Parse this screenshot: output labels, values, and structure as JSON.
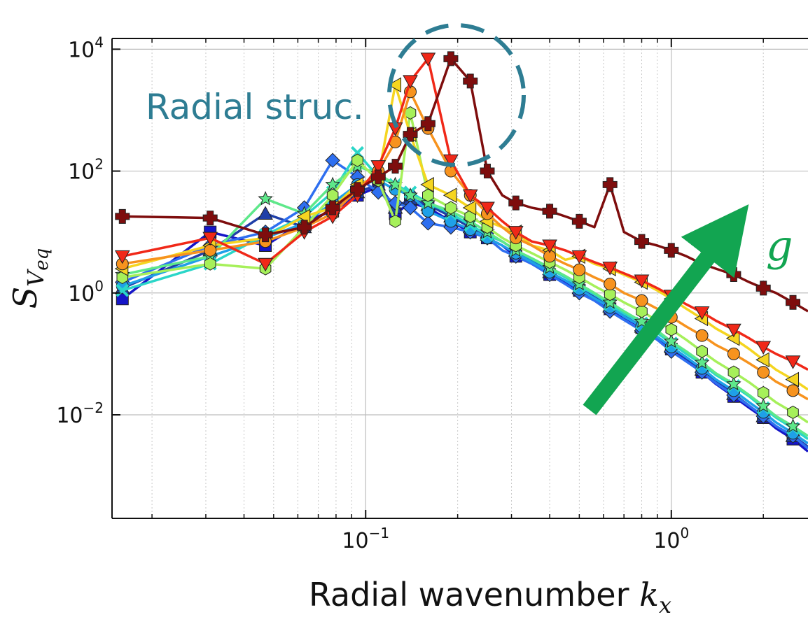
{
  "chart_data": {
    "type": "line",
    "title": "",
    "xlabel": "Radial wavenumber",
    "xlabel_symbol": "k",
    "xlabel_subscript": "x",
    "ylabel_symbol": "S",
    "ylabel_subscript_base": "V",
    "ylabel_subscript": "eq",
    "xscale": "log",
    "yscale": "log",
    "xlim": [
      0.0148,
      2.8
    ],
    "ylim": [
      0.0002,
      15000
    ],
    "grid": true,
    "x_ticks": [
      {
        "value": 0.1,
        "base": "10",
        "exp": "−1"
      },
      {
        "value": 1,
        "base": "10",
        "exp": "0"
      }
    ],
    "y_ticks": [
      {
        "value": 10000,
        "base": "10",
        "exp": "4"
      },
      {
        "value": 100,
        "base": "10",
        "exp": "2"
      },
      {
        "value": 1,
        "base": "10",
        "exp": "0"
      },
      {
        "value": 0.01,
        "base": "10",
        "exp": "−2"
      }
    ],
    "annotations": {
      "radial": "Radial struc.",
      "arrow": "g"
    },
    "series": [
      {
        "color": "#1515c8",
        "marker": "square",
        "x": [
          0.016,
          0.031,
          0.047,
          0.063,
          0.078,
          0.094,
          0.11,
          0.125,
          0.14,
          0.16,
          0.19,
          0.22,
          0.25,
          0.28,
          0.31,
          0.35,
          0.4,
          0.45,
          0.5,
          0.56,
          0.63,
          0.7,
          0.8,
          0.9,
          1.0,
          1.12,
          1.26,
          1.4,
          1.6,
          1.8,
          2.0,
          2.2,
          2.5,
          2.8
        ],
        "y": [
          0.8,
          10,
          6,
          15,
          22,
          40,
          55,
          20,
          30,
          25,
          15,
          10,
          8,
          6,
          4,
          3,
          2,
          1.5,
          1.1,
          0.8,
          0.55,
          0.4,
          0.27,
          0.18,
          0.12,
          0.08,
          0.05,
          0.032,
          0.02,
          0.013,
          0.009,
          0.006,
          0.004,
          0.0025
        ]
      },
      {
        "color": "#1f3fa8",
        "marker": "triangle-up",
        "x": [
          0.016,
          0.031,
          0.047,
          0.063,
          0.078,
          0.094,
          0.11,
          0.125,
          0.14,
          0.16,
          0.19,
          0.22,
          0.25,
          0.28,
          0.31,
          0.35,
          0.4,
          0.45,
          0.5,
          0.56,
          0.63,
          0.7,
          0.8,
          0.9,
          1.0,
          1.12,
          1.26,
          1.4,
          1.6,
          1.8,
          2.0,
          2.2,
          2.5,
          2.8
        ],
        "y": [
          1.2,
          5,
          20,
          12,
          25,
          45,
          60,
          25,
          35,
          28,
          18,
          12,
          9,
          7,
          5,
          3.5,
          2.2,
          1.6,
          1.2,
          0.85,
          0.6,
          0.42,
          0.28,
          0.19,
          0.13,
          0.085,
          0.055,
          0.035,
          0.022,
          0.014,
          0.0095,
          0.0065,
          0.0045,
          0.003
        ]
      },
      {
        "color": "#2e6ff0",
        "marker": "diamond",
        "x": [
          0.016,
          0.031,
          0.047,
          0.063,
          0.078,
          0.094,
          0.11,
          0.125,
          0.14,
          0.16,
          0.19,
          0.22,
          0.25,
          0.28,
          0.31,
          0.35,
          0.4,
          0.45,
          0.5,
          0.56,
          0.63,
          0.7,
          0.8,
          0.9,
          1.0,
          1.12,
          1.26,
          1.4,
          1.6,
          1.8,
          2.0,
          2.2,
          2.5,
          2.8
        ],
        "y": [
          1.5,
          6,
          10,
          25,
          150,
          80,
          45,
          30,
          25,
          14,
          12,
          10,
          8,
          5,
          4,
          3,
          2,
          1.4,
          1.0,
          0.75,
          0.5,
          0.36,
          0.24,
          0.17,
          0.11,
          0.075,
          0.05,
          0.033,
          0.021,
          0.014,
          0.0095,
          0.0065,
          0.0045,
          0.0028
        ]
      },
      {
        "color": "#1fa0e8",
        "marker": "circle",
        "x": [
          0.016,
          0.031,
          0.047,
          0.063,
          0.078,
          0.094,
          0.11,
          0.125,
          0.14,
          0.16,
          0.19,
          0.22,
          0.25,
          0.28,
          0.31,
          0.35,
          0.4,
          0.45,
          0.5,
          0.56,
          0.63,
          0.7,
          0.8,
          0.9,
          1.0,
          1.12,
          1.26,
          1.4,
          1.6,
          1.8,
          2.0,
          2.2,
          2.5,
          2.8
        ],
        "y": [
          1.3,
          4,
          8,
          14,
          30,
          60,
          70,
          50,
          40,
          22,
          15,
          11,
          8,
          6,
          4.5,
          3.2,
          2.2,
          1.6,
          1.15,
          0.82,
          0.58,
          0.41,
          0.28,
          0.19,
          0.13,
          0.088,
          0.058,
          0.038,
          0.025,
          0.016,
          0.011,
          0.0075,
          0.005,
          0.0034
        ]
      },
      {
        "color": "#2ad6c8",
        "marker": "x",
        "x": [
          0.016,
          0.031,
          0.047,
          0.063,
          0.078,
          0.094,
          0.11,
          0.125,
          0.14,
          0.16,
          0.19,
          0.22,
          0.25,
          0.28,
          0.31,
          0.35,
          0.4,
          0.45,
          0.5,
          0.56,
          0.63,
          0.7,
          0.8,
          0.9,
          1.0,
          1.12,
          1.26,
          1.4,
          1.6,
          1.8,
          2.0,
          2.2,
          2.5,
          2.8
        ],
        "y": [
          1.1,
          3,
          9,
          18,
          45,
          200,
          80,
          60,
          45,
          30,
          20,
          13,
          9,
          7,
          5,
          3.6,
          2.5,
          1.8,
          1.3,
          0.95,
          0.65,
          0.46,
          0.32,
          0.22,
          0.15,
          0.1,
          0.068,
          0.045,
          0.03,
          0.02,
          0.013,
          0.009,
          0.006,
          0.004
        ]
      },
      {
        "color": "#5ee88a",
        "marker": "star",
        "x": [
          0.016,
          0.031,
          0.047,
          0.063,
          0.078,
          0.094,
          0.11,
          0.125,
          0.14,
          0.16,
          0.19,
          0.22,
          0.25,
          0.28,
          0.31,
          0.35,
          0.4,
          0.45,
          0.5,
          0.56,
          0.63,
          0.7,
          0.8,
          0.9,
          1.0,
          1.12,
          1.26,
          1.4,
          1.6,
          1.8,
          2.0,
          2.2,
          2.5,
          2.8
        ],
        "y": [
          2,
          4,
          35,
          20,
          60,
          120,
          90,
          60,
          40,
          30,
          22,
          15,
          10,
          7,
          5,
          3.7,
          2.6,
          1.9,
          1.4,
          1.0,
          0.7,
          0.5,
          0.34,
          0.24,
          0.16,
          0.11,
          0.072,
          0.048,
          0.032,
          0.021,
          0.014,
          0.0095,
          0.0065,
          0.0045
        ]
      },
      {
        "color": "#a6f05a",
        "marker": "hexagon",
        "x": [
          0.016,
          0.031,
          0.047,
          0.063,
          0.078,
          0.094,
          0.11,
          0.125,
          0.14,
          0.16,
          0.19,
          0.22,
          0.25,
          0.28,
          0.31,
          0.35,
          0.4,
          0.45,
          0.5,
          0.56,
          0.63,
          0.7,
          0.8,
          0.9,
          1.0,
          1.12,
          1.26,
          1.4,
          1.6,
          1.8,
          2.0,
          2.2,
          2.5,
          2.8
        ],
        "y": [
          1.8,
          3,
          2.5,
          12,
          40,
          150,
          70,
          15,
          900,
          40,
          25,
          18,
          12,
          8,
          6,
          4.5,
          3.2,
          2.4,
          1.8,
          1.3,
          0.95,
          0.7,
          0.5,
          0.35,
          0.25,
          0.17,
          0.11,
          0.075,
          0.05,
          0.034,
          0.023,
          0.016,
          0.011,
          0.0075
        ]
      },
      {
        "color": "#f5d520",
        "marker": "triangle-left",
        "x": [
          0.016,
          0.031,
          0.047,
          0.063,
          0.078,
          0.094,
          0.11,
          0.125,
          0.14,
          0.16,
          0.19,
          0.22,
          0.25,
          0.28,
          0.31,
          0.35,
          0.4,
          0.45,
          0.5,
          0.56,
          0.63,
          0.7,
          0.8,
          0.9,
          1.0,
          1.12,
          1.26,
          1.4,
          1.6,
          1.8,
          2.0,
          2.2,
          2.5,
          2.8
        ],
        "y": [
          2.5,
          6,
          8,
          18,
          25,
          60,
          80,
          2600,
          400,
          60,
          40,
          25,
          15,
          12,
          10,
          6,
          5,
          3.5,
          4,
          3,
          2.5,
          2,
          1.5,
          1.1,
          0.8,
          0.55,
          0.38,
          0.26,
          0.18,
          0.12,
          0.08,
          0.055,
          0.038,
          0.026
        ]
      },
      {
        "color": "#f7931e",
        "marker": "circle",
        "x": [
          0.016,
          0.031,
          0.047,
          0.063,
          0.078,
          0.094,
          0.11,
          0.125,
          0.14,
          0.16,
          0.19,
          0.22,
          0.25,
          0.28,
          0.31,
          0.35,
          0.4,
          0.45,
          0.5,
          0.56,
          0.63,
          0.7,
          0.8,
          0.9,
          1.0,
          1.12,
          1.26,
          1.4,
          1.6,
          1.8,
          2.0,
          2.2,
          2.5,
          2.8
        ],
        "y": [
          3,
          5,
          7,
          12,
          20,
          50,
          100,
          300,
          2000,
          500,
          100,
          40,
          20,
          12,
          8,
          6,
          4,
          3,
          2.4,
          1.8,
          1.4,
          1.0,
          0.75,
          0.55,
          0.4,
          0.28,
          0.2,
          0.14,
          0.1,
          0.07,
          0.05,
          0.035,
          0.025,
          0.018
        ]
      },
      {
        "color": "#f02818",
        "marker": "triangle-down",
        "x": [
          0.016,
          0.031,
          0.047,
          0.063,
          0.078,
          0.094,
          0.11,
          0.125,
          0.14,
          0.16,
          0.19,
          0.22,
          0.25,
          0.28,
          0.31,
          0.35,
          0.4,
          0.45,
          0.5,
          0.56,
          0.63,
          0.7,
          0.8,
          0.9,
          1.0,
          1.12,
          1.26,
          1.4,
          1.6,
          1.8,
          2.0,
          2.2,
          2.5,
          2.8
        ],
        "y": [
          4,
          8,
          3,
          10,
          18,
          40,
          120,
          500,
          3000,
          7000,
          150,
          40,
          25,
          15,
          10,
          7,
          6,
          5,
          4,
          3.2,
          2.6,
          2.1,
          1.6,
          1.2,
          0.9,
          0.65,
          0.48,
          0.35,
          0.25,
          0.18,
          0.13,
          0.1,
          0.075,
          0.055
        ]
      },
      {
        "color": "#7e0d0d",
        "marker": "plus",
        "x": [
          0.016,
          0.031,
          0.047,
          0.063,
          0.078,
          0.094,
          0.11,
          0.125,
          0.14,
          0.16,
          0.19,
          0.22,
          0.25,
          0.28,
          0.31,
          0.35,
          0.4,
          0.45,
          0.5,
          0.56,
          0.63,
          0.7,
          0.8,
          0.9,
          1.0,
          1.12,
          1.26,
          1.4,
          1.6,
          1.8,
          2.0,
          2.2,
          2.5,
          2.8
        ],
        "y": [
          18,
          17,
          9,
          12,
          25,
          50,
          80,
          120,
          400,
          600,
          7000,
          3000,
          100,
          40,
          30,
          25,
          22,
          18,
          15,
          12,
          60,
          10,
          7,
          6,
          5,
          4,
          3,
          2.5,
          2,
          1.5,
          1.2,
          1.0,
          0.7,
          0.5
        ]
      }
    ]
  }
}
